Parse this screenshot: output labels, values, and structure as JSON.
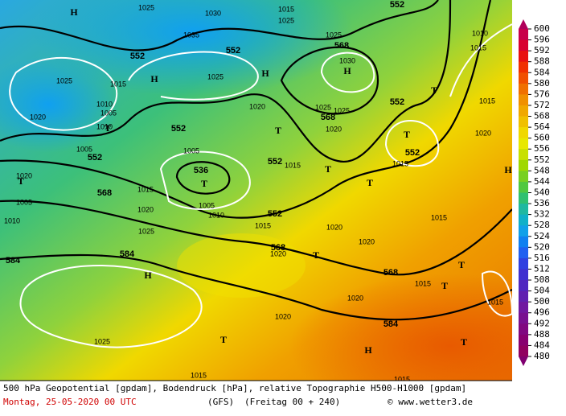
{
  "colorbar": {
    "ticks": [
      600,
      596,
      592,
      588,
      584,
      580,
      576,
      572,
      568,
      564,
      560,
      556,
      552,
      548,
      544,
      540,
      536,
      532,
      528,
      524,
      520,
      516,
      512,
      508,
      504,
      500,
      496,
      492,
      488,
      484,
      480
    ]
  },
  "geopotential_labels": [
    "552",
    "552",
    "552",
    "552",
    "552",
    "552",
    "552",
    "552",
    "552",
    "568",
    "568",
    "536",
    "568",
    "568",
    "568",
    "584",
    "584",
    "584"
  ],
  "pressure_labels": [
    "1025",
    "1030",
    "1015",
    "1025",
    "1035",
    "1025",
    "1030",
    "1025",
    "1015",
    "1025",
    "1010",
    "1005",
    "1020",
    "1020",
    "1025",
    "1025",
    "1020",
    "1010",
    "1005",
    "1005",
    "1015",
    "1015",
    "1020",
    "1015",
    "1010",
    "1015",
    "1020",
    "1015",
    "1005",
    "1020",
    "1005",
    "1010",
    "1015",
    "1010",
    "1025",
    "1015",
    "1020",
    "1020",
    "1020",
    "1015",
    "1020",
    "1015",
    "1020",
    "1025",
    "1015",
    "1015"
  ],
  "markers": [
    "H",
    "H",
    "H",
    "H",
    "H",
    "H",
    "H",
    "T",
    "T",
    "T",
    "T",
    "T",
    "T",
    "T",
    "T",
    "T",
    "T",
    "T",
    "T",
    "T"
  ],
  "footer": {
    "line1": "500 hPa Geopotential [gpdam], Bodendruck [hPa], relative Topographie H500-H1000 [gpdam]",
    "date": "Montag, 25-05-2020  00 UTC",
    "model": "(GFS)",
    "run": "(Freitag 00 + 240)",
    "credit": "© www.wetter3.de"
  }
}
